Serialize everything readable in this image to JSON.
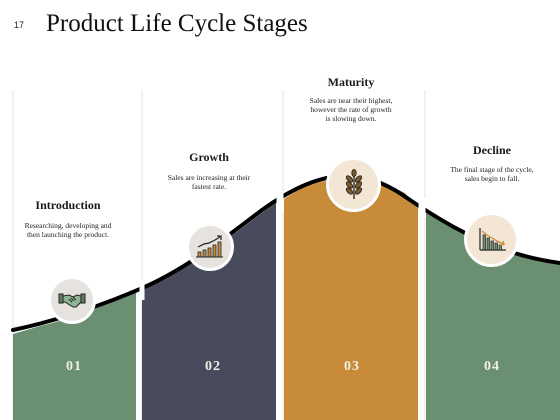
{
  "page": {
    "slide_number": "17",
    "title": "Product Life Cycle Stages"
  },
  "colors": {
    "introduction": "#6b8f71",
    "growth": "#474b5c",
    "maturity": "#c88b3a",
    "decline": "#6b8f71",
    "divider": "#e0e0e0",
    "curve": "#000000"
  },
  "stages": [
    {
      "number": "01",
      "title": "Introduction",
      "description": "Researching, developing and then launching the product.",
      "icon": "handshake-icon"
    },
    {
      "number": "02",
      "title": "Growth",
      "description": "Sales are increasing at their fastest rate.",
      "icon": "growth-chart-icon"
    },
    {
      "number": "03",
      "title": "Maturity",
      "description": "Sales are near their highest, however the rate of growth is slowing down.",
      "icon": "wheat-icon"
    },
    {
      "number": "04",
      "title": "Decline",
      "description": "The final stage of the cycle, sales begin to fall.",
      "icon": "declining-chart-icon"
    }
  ]
}
